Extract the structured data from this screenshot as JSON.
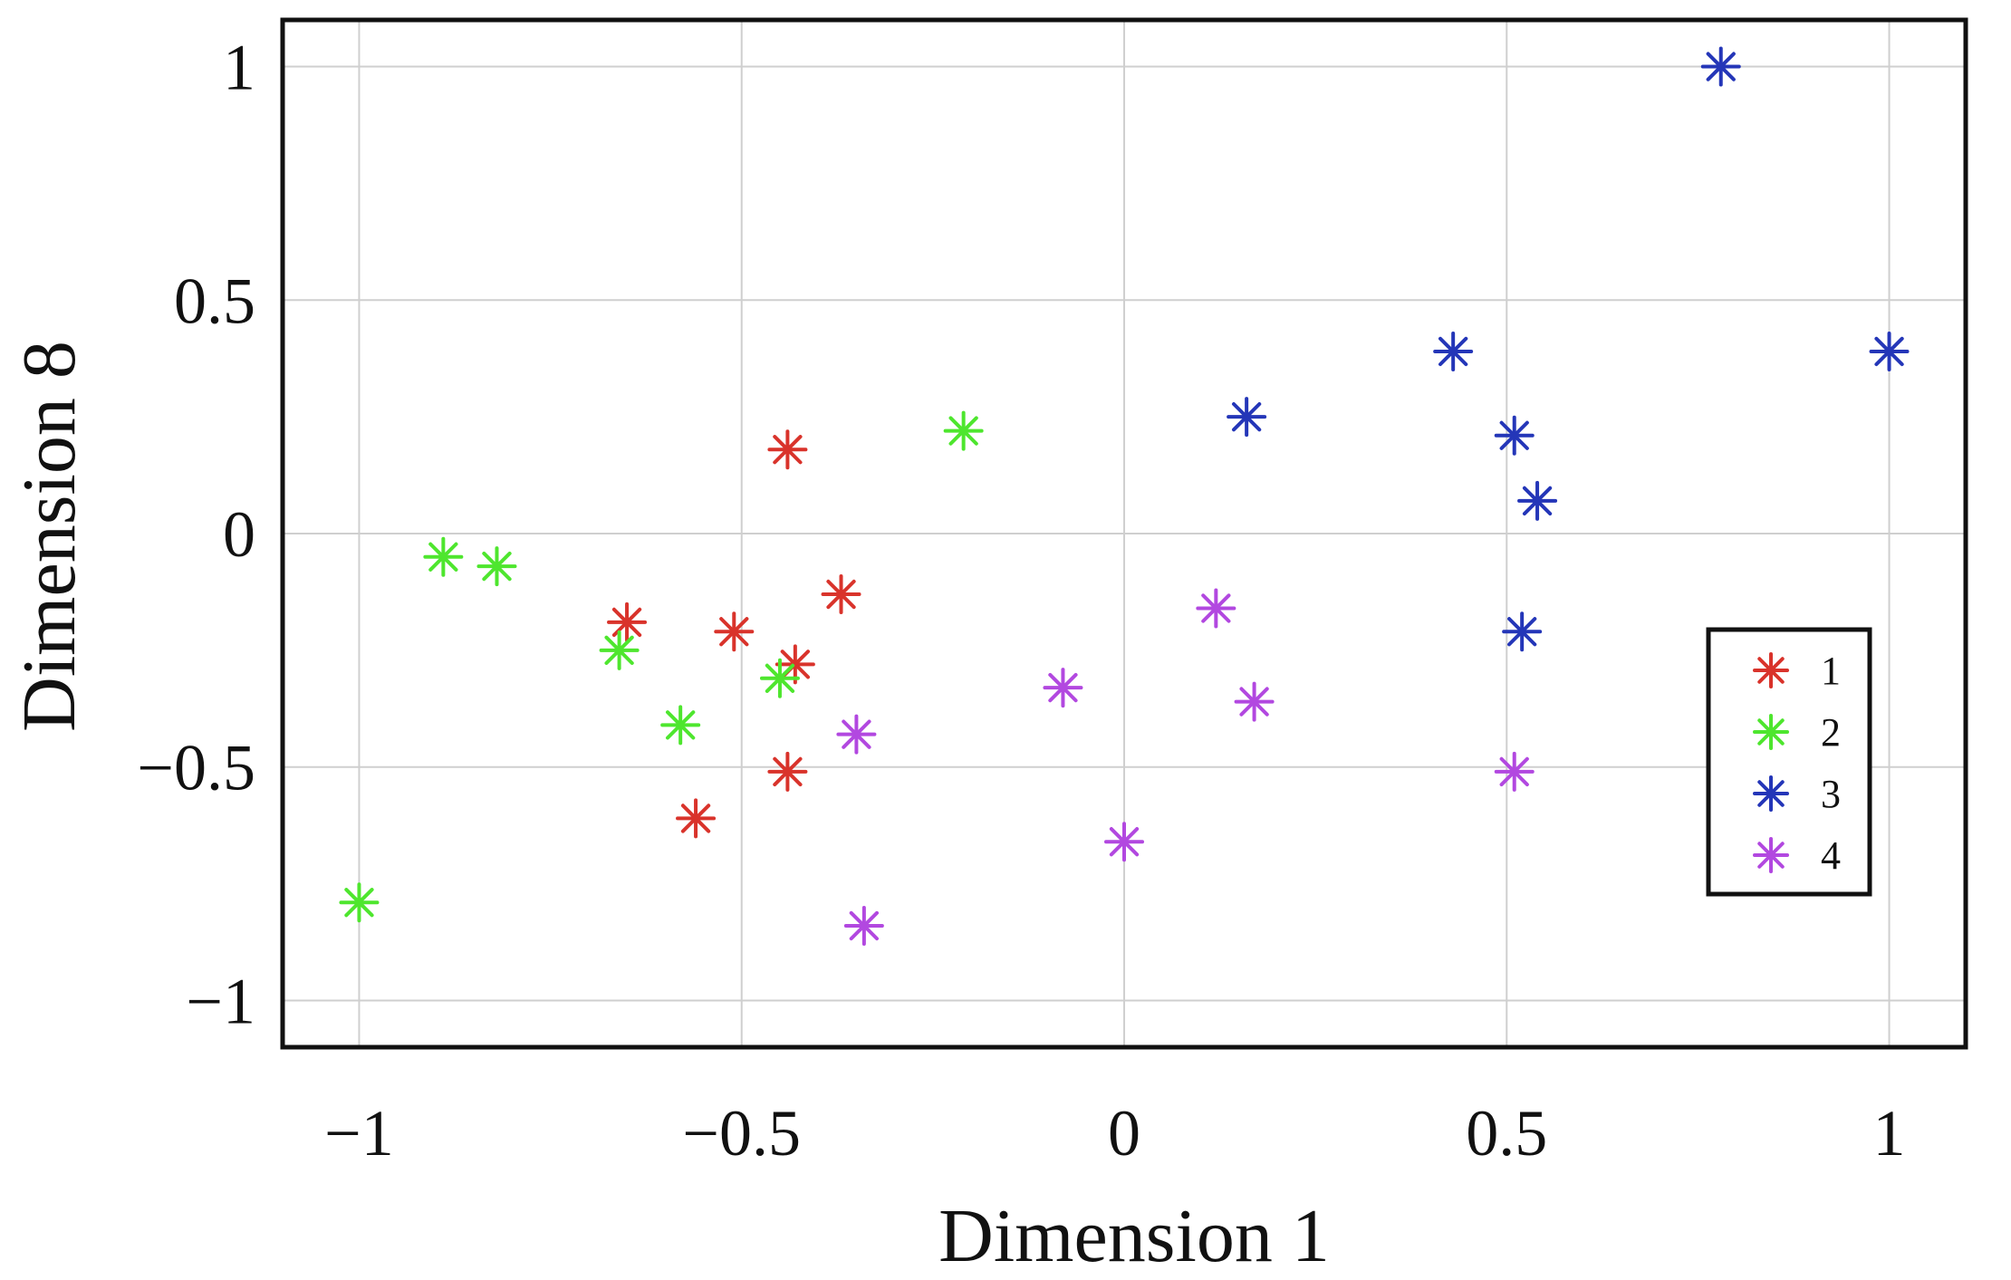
{
  "chart_data": {
    "type": "scatter",
    "title": "",
    "xlabel": "Dimension 1",
    "ylabel": "Dimension 8",
    "xlim": [
      -1.1,
      1.1
    ],
    "ylim": [
      -1.1,
      1.1
    ],
    "xticks": [
      -1,
      -0.5,
      0,
      0.5,
      1
    ],
    "xtick_labels": [
      "−1",
      "−0.5",
      "0",
      "0.5",
      "1"
    ],
    "yticks": [
      1,
      0.5,
      0,
      -0.5,
      -1
    ],
    "ytick_labels": [
      "1",
      "0.5",
      "0",
      "−0.5",
      "−1"
    ],
    "grid": true,
    "legend_position": "right",
    "marker": "asterisk",
    "series": [
      {
        "name": "1",
        "color": "#d9332b",
        "points": [
          [
            -0.44,
            0.18
          ],
          [
            -0.37,
            -0.13
          ],
          [
            -0.65,
            -0.19
          ],
          [
            -0.51,
            -0.21
          ],
          [
            -0.43,
            -0.28
          ],
          [
            -0.44,
            -0.51
          ],
          [
            -0.56,
            -0.61
          ]
        ]
      },
      {
        "name": "2",
        "color": "#4ee62e",
        "points": [
          [
            -0.21,
            0.22
          ],
          [
            -0.89,
            -0.05
          ],
          [
            -0.82,
            -0.07
          ],
          [
            -0.66,
            -0.25
          ],
          [
            -0.45,
            -0.31
          ],
          [
            -0.58,
            -0.41
          ],
          [
            -1.0,
            -0.79
          ]
        ]
      },
      {
        "name": "3",
        "color": "#2436b8",
        "points": [
          [
            0.78,
            1.0
          ],
          [
            0.43,
            0.39
          ],
          [
            1.0,
            0.39
          ],
          [
            0.16,
            0.25
          ],
          [
            0.51,
            0.21
          ],
          [
            0.54,
            0.07
          ],
          [
            0.52,
            -0.21
          ]
        ]
      },
      {
        "name": "4",
        "color": "#b248e0",
        "points": [
          [
            0.12,
            -0.16
          ],
          [
            -0.08,
            -0.33
          ],
          [
            0.17,
            -0.36
          ],
          [
            -0.35,
            -0.43
          ],
          [
            0.51,
            -0.51
          ],
          [
            0.0,
            -0.66
          ],
          [
            -0.34,
            -0.84
          ]
        ]
      }
    ]
  }
}
